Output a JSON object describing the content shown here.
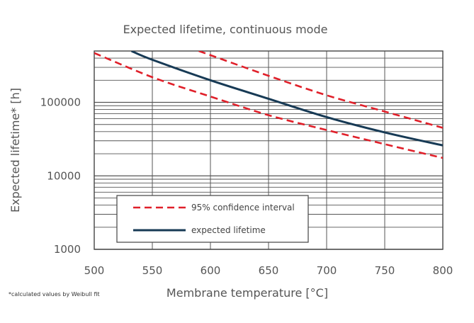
{
  "chart_data": {
    "type": "line",
    "title": "Expected lifetime, continuous mode",
    "xlabel": "Membrane temperature [°C]",
    "ylabel": "Expected lifetime* [h]",
    "footnote": "*calculated values by Weibull fit",
    "xlim": [
      500,
      800
    ],
    "ylim": [
      1000,
      500000
    ],
    "yscale": "log",
    "grid": true,
    "x_ticks": [
      500,
      550,
      600,
      650,
      700,
      750,
      800
    ],
    "x_tick_labels": [
      "500",
      "550",
      "600",
      "650",
      "700",
      "750",
      "800"
    ],
    "y_ticks": [
      1000,
      10000,
      100000
    ],
    "y_tick_labels": [
      "1000",
      "10000",
      "100000"
    ],
    "legend_position": "bottom-center",
    "series": [
      {
        "name": "95% confidence interval",
        "style": "dashed",
        "color": "#e0202a",
        "x": [
          590,
          650,
          700,
          750,
          800
        ],
        "y": [
          500000,
          230000,
          125000,
          75000,
          45000
        ]
      },
      {
        "name": "95% confidence interval lower",
        "style": "dashed",
        "color": "#e0202a",
        "x": [
          500,
          550,
          600,
          650,
          700,
          750,
          800
        ],
        "y": [
          470000,
          220000,
          120000,
          67000,
          42000,
          27000,
          17500
        ]
      },
      {
        "name": "expected lifetime",
        "style": "solid",
        "color": "#173a55",
        "x": [
          532,
          550,
          600,
          650,
          700,
          750,
          800
        ],
        "y": [
          500000,
          380000,
          200000,
          112000,
          63000,
          39000,
          26000
        ]
      }
    ],
    "legend": [
      {
        "label": "95% confidence interval",
        "style": "dashed",
        "color": "#e0202a"
      },
      {
        "label": "expected lifetime",
        "style": "solid",
        "color": "#173a55"
      }
    ]
  }
}
